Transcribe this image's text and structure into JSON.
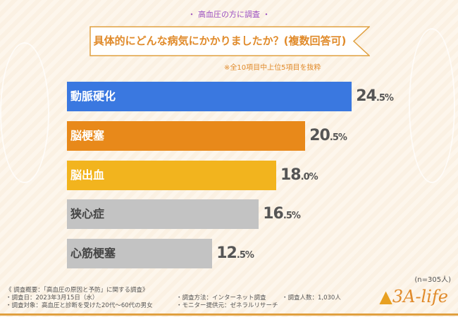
{
  "header": {
    "survey_label": "・ 高血圧の方に調査 ・",
    "question": "具体的にどんな病気にかかりましたか？(複数回答可)",
    "note": "※全10項目中上位5項目を抜粋"
  },
  "chart_data": {
    "type": "bar",
    "orientation": "horizontal",
    "categories": [
      "動脈硬化",
      "脳梗塞",
      "脳出血",
      "狭心症",
      "心筋梗塞"
    ],
    "values": [
      24.5,
      20.5,
      18.0,
      16.5,
      12.5
    ],
    "value_labels": [
      "24.5",
      "20.5",
      "18.0",
      "16.5",
      "12.5"
    ],
    "unit": "%",
    "colors": [
      "#3a78e0",
      "#e8891a",
      "#f2b41e",
      "#c3c3c3",
      "#c3c3c3"
    ],
    "sample": "(n=305人)"
  },
  "footer": {
    "summary": "《 調査概要：「高血圧の原因と予防」に関する調査》",
    "date": "・調査日：2023年3月15日（水）",
    "target": "・調査対象：高血圧と診断を受けた20代～60代の男女",
    "method": "・調査方法：インターネット調査",
    "provider": "・モニター提供元：ゼネラルリサーチ",
    "count": "・調査人数：1,030人",
    "logo": "3A-life"
  }
}
